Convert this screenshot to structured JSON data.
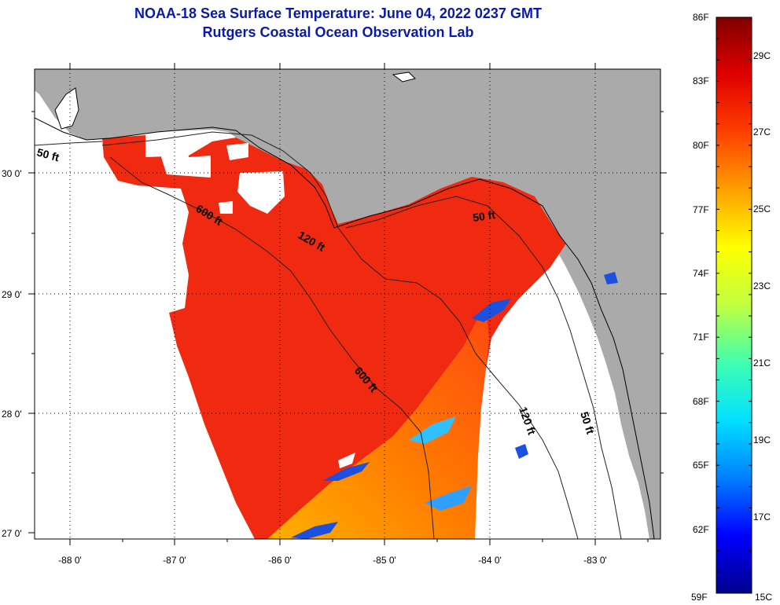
{
  "title": {
    "line1": "NOAA-18 Sea Surface Temperature:  June 04, 2022 0237 GMT",
    "line2": "Rutgers Coastal Ocean Observation Lab"
  },
  "map": {
    "lat_labels": [
      "30 0'",
      "29 0'",
      "28 0'",
      "27 0'"
    ],
    "lon_labels": [
      "-88 0'",
      "-87 0'",
      "-86 0'",
      "-85 0'",
      "-84 0'",
      "-83 0'"
    ],
    "contours": {
      "c50_west": "50 ft",
      "c600_north": "600 ft",
      "c120_north": "120 ft",
      "c50_east": "50 ft",
      "c600_south": "600 ft",
      "c120_east": "120 ft",
      "c50_south": "50 ft"
    },
    "colors": {
      "land": "#aaaaaa",
      "no_data": "#ffffff",
      "sst_warm": "#f02a10",
      "sst_orange": "#ff6a00",
      "sst_cool": "#1e50e0"
    }
  },
  "colorbar": {
    "fahrenheit": [
      "86F",
      "83F",
      "80F",
      "77F",
      "74F",
      "71F",
      "68F",
      "65F",
      "62F",
      "59F"
    ],
    "celsius": [
      "29C",
      "27C",
      "25C",
      "23C",
      "21C",
      "19C",
      "17C",
      "15C"
    ],
    "stops": [
      "#00008a",
      "#0000ff",
      "#0080ff",
      "#00e0ff",
      "#40ffb0",
      "#c0ff40",
      "#ffff00",
      "#ffa000",
      "#ff4000",
      "#e00000",
      "#800000"
    ]
  }
}
